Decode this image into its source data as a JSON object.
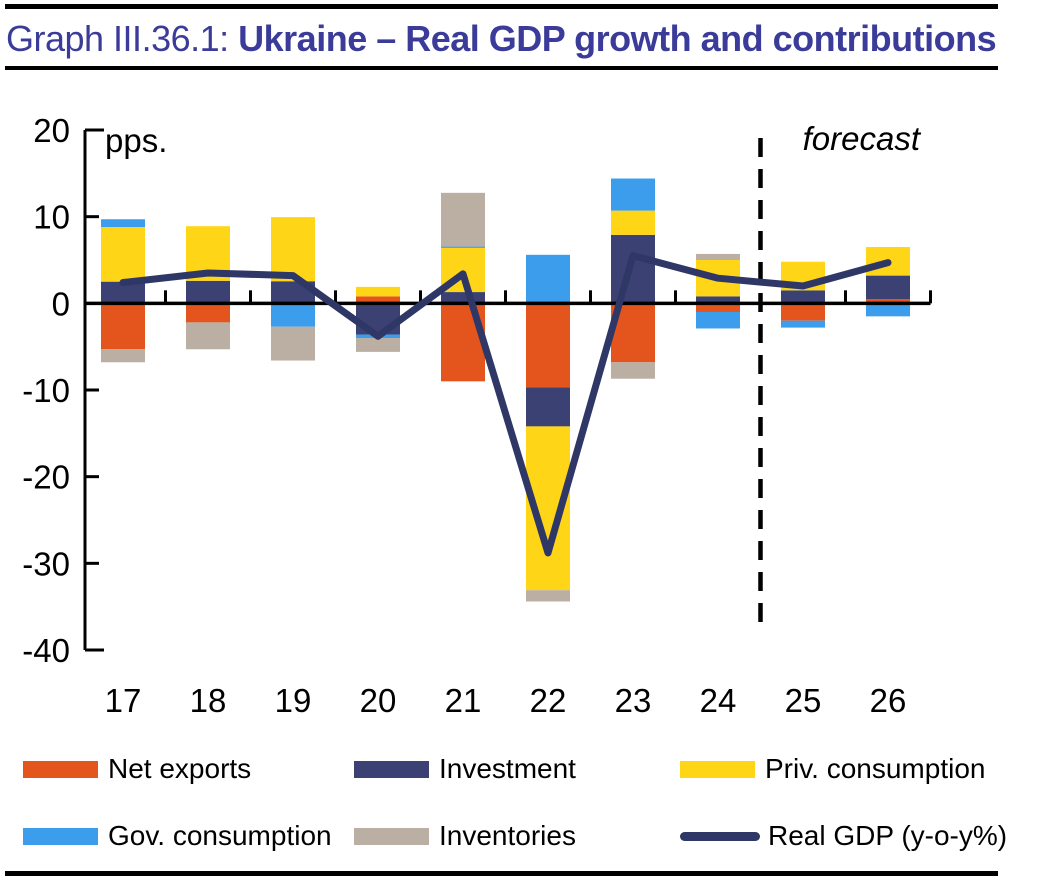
{
  "header": {
    "graph_label": "Graph III.36.1:",
    "title": "Ukraine – Real GDP growth and contributions"
  },
  "chart_data": {
    "type": "stacked-bar-with-line",
    "unit_label": "pps.",
    "forecast_label": "forecast",
    "categories": [
      "17",
      "18",
      "19",
      "20",
      "21",
      "22",
      "23",
      "24",
      "25",
      "26"
    ],
    "ylim": [
      -40,
      20
    ],
    "yticks": [
      20,
      10,
      0,
      -10,
      -20,
      -30,
      -40
    ],
    "forecast_divider_between": [
      "24",
      "25"
    ],
    "stack_order_note": "stacked in series order, positives up / negatives down",
    "series": [
      {
        "name": "Net exports",
        "color": "#E4551E",
        "values": [
          -5.3,
          -2.2,
          0.15,
          0.8,
          -9.0,
          -9.7,
          -6.8,
          -1.0,
          -2.0,
          0.5
        ]
      },
      {
        "name": "Investment",
        "color": "#3B4273",
        "values": [
          2.5,
          2.6,
          2.4,
          -3.6,
          1.3,
          -4.5,
          7.9,
          0.8,
          1.5,
          2.7
        ]
      },
      {
        "name": "Priv. consumption",
        "color": "#FFD617",
        "values": [
          6.3,
          6.3,
          7.4,
          1.1,
          5.1,
          -18.9,
          2.8,
          4.2,
          3.3,
          3.3
        ]
      },
      {
        "name": "Gov. consumption",
        "color": "#3B9DEB",
        "values": [
          0.9,
          0,
          -2.7,
          -0.4,
          0.15,
          5.6,
          3.7,
          -1.9,
          -0.8,
          -1.5
        ]
      },
      {
        "name": "Inventories",
        "color": "#BBAEA3",
        "values": [
          -1.5,
          -3.1,
          -3.9,
          -1.6,
          6.2,
          -1.3,
          -1.9,
          0.7,
          0,
          0
        ]
      }
    ],
    "line_series": {
      "name": "Real GDP (y-o-y%)",
      "color": "#2F3766",
      "values": [
        2.4,
        3.5,
        3.2,
        -3.8,
        3.4,
        -28.8,
        5.5,
        2.9,
        2.0,
        4.7
      ]
    },
    "axis_color": "#000000"
  }
}
